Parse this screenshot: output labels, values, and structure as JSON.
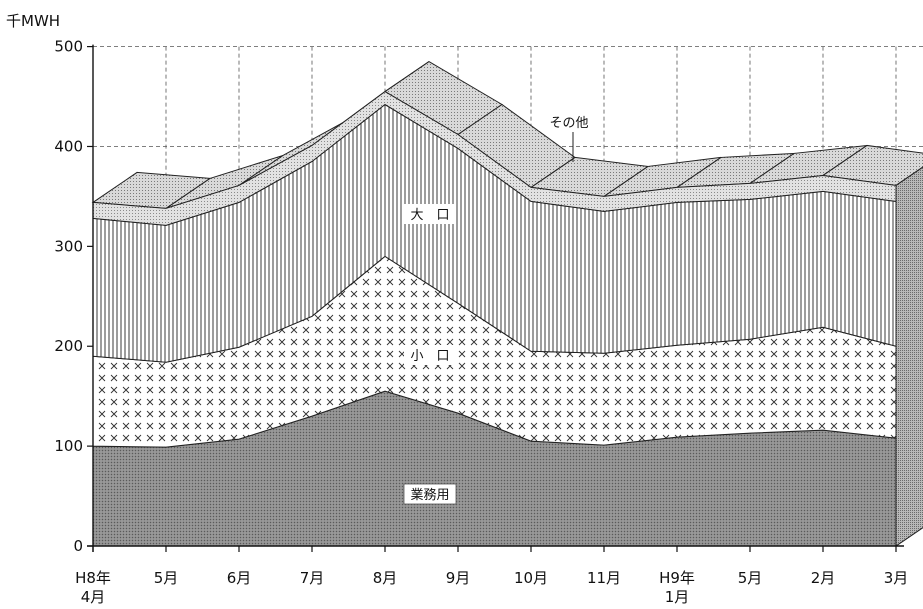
{
  "chart_data": {
    "type": "area",
    "stacked": true,
    "title": "",
    "ylabel": "千MWH",
    "xlabel": "",
    "ylim": [
      0,
      500
    ],
    "y_ticks": [
      "0",
      "100",
      "200",
      "300",
      "400",
      "500"
    ],
    "categories": [
      [
        "H8年",
        "4月"
      ],
      [
        "5月"
      ],
      [
        "6月"
      ],
      [
        "7月"
      ],
      [
        "8月"
      ],
      [
        "9月"
      ],
      [
        "10月"
      ],
      [
        "11月"
      ],
      [
        "H9年",
        "1月"
      ],
      [
        "5月"
      ],
      [
        "2月"
      ],
      [
        "3月"
      ]
    ],
    "grid": true,
    "series": [
      {
        "name": "業務用",
        "values": [
          100,
          99,
          107,
          130,
          155,
          133,
          105,
          101,
          109,
          113,
          116,
          108
        ]
      },
      {
        "name": "小口",
        "values": [
          90,
          85,
          92,
          100,
          135,
          110,
          90,
          92,
          92,
          94,
          103,
          92
        ]
      },
      {
        "name": "大口",
        "values": [
          138,
          137,
          145,
          155,
          152,
          155,
          150,
          142,
          143,
          140,
          136,
          145
        ]
      },
      {
        "name": "その他",
        "values": [
          16,
          17,
          17,
          16,
          13,
          14,
          14,
          15,
          15,
          16,
          16,
          16
        ]
      }
    ],
    "colors": {
      "business": "#8a8a8a",
      "small": "#ffffff",
      "large": "#f2f2f2",
      "other": "#d6d6d6",
      "top_face": "#d0d0d0",
      "side_face": "#bdbdbd"
    }
  }
}
